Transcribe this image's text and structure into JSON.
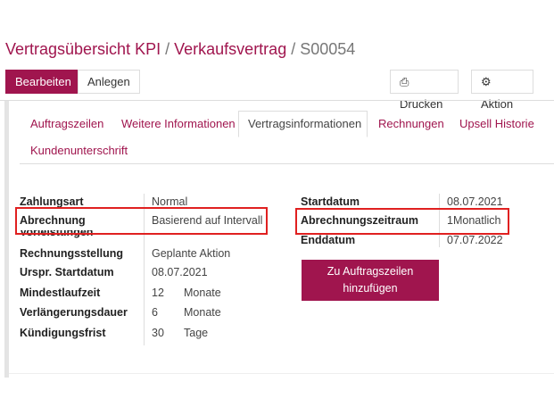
{
  "breadcrumb": {
    "items": [
      "Vertragsübersicht KPI",
      "Verkaufsvertrag"
    ],
    "current": "S00054",
    "separator": "/"
  },
  "toolbar": {
    "edit": "Bearbeiten",
    "create": "Anlegen",
    "print": "Drucken",
    "action": "Aktion",
    "print_icon": "printer-icon",
    "action_icon": "gear-icon"
  },
  "tabs": [
    "Auftragszeilen",
    "Weitere Informationen",
    "Vertragsinformationen",
    "Rechnungen",
    "Upsell Historie",
    "Kundenunterschrift"
  ],
  "active_tab": "Vertragsinformationen",
  "left_fields": [
    {
      "label": "Zahlungsart",
      "value": "Normal"
    },
    {
      "label": "Abrechnung",
      "value": "Basierend auf Intervall"
    },
    {
      "label": "Vorleistungen",
      "value": ""
    },
    {
      "label": "Rechnungsstellung",
      "value": "Geplante Aktion"
    },
    {
      "label": "Urspr. Startdatum",
      "value": "08.07.2021"
    },
    {
      "label": "Mindestlaufzeit",
      "value": "12",
      "unit": "Monate"
    },
    {
      "label": "Verlängerungsdauer",
      "value": "6",
      "unit": "Monate"
    },
    {
      "label": "Kündigungsfrist",
      "value": "30",
      "unit": "Tage"
    }
  ],
  "right_fields": [
    {
      "label": "Startdatum",
      "value": "08.07.2021"
    },
    {
      "label": "Abrechnungszeitraum",
      "value": "1Monatlich"
    },
    {
      "label": "Enddatum",
      "value": "07.07.2022"
    }
  ],
  "add_button": {
    "line1": "Zu Auftragszeilen",
    "line2": "hinzufügen"
  },
  "colors": {
    "brand": "#a0154e",
    "highlight": "#e02020"
  }
}
